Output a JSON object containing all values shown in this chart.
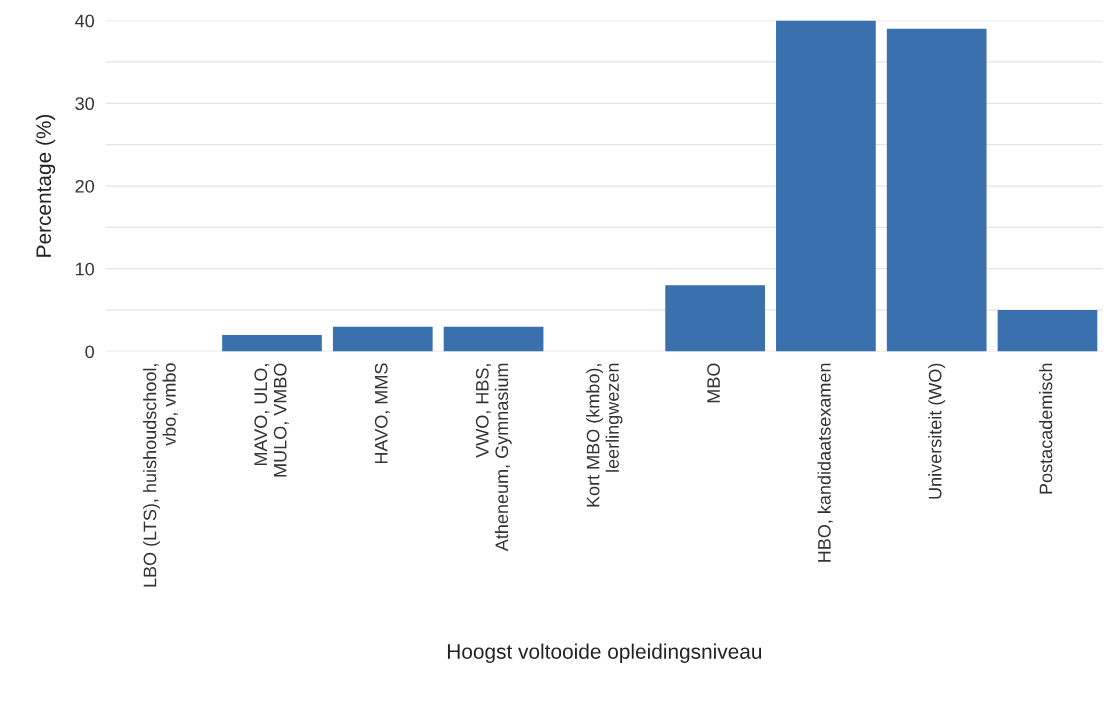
{
  "chart_data": {
    "type": "bar",
    "categories": [
      "LBO (LTS), huishoudschool,\nvbo, vmbo",
      "MAVO, ULO,\nMULO, VMBO",
      "HAVO, MMS",
      "VWO, HBS,\nAtheneum, Gymnasium",
      "Kort MBO (kmbo),\nleerlingwezen",
      "MBO",
      "HBO, kandidaatsexamen",
      "Universiteit (WO)",
      "Postacademisch"
    ],
    "values": [
      0,
      2,
      3,
      3,
      0,
      8,
      40,
      39,
      5
    ],
    "color": "#3a70ad",
    "xlabel": "Hoogst voltooide opleidingsniveau",
    "ylabel": "Percentage (%)",
    "ylim": [
      0,
      40
    ],
    "yticks": [
      0,
      {
        "value": 5,
        "label": null
      },
      10,
      {
        "value": 15,
        "label": null
      },
      20,
      {
        "value": 25,
        "label": null
      },
      30,
      {
        "value": 35,
        "label": null
      },
      40
    ],
    "grid": "y"
  }
}
